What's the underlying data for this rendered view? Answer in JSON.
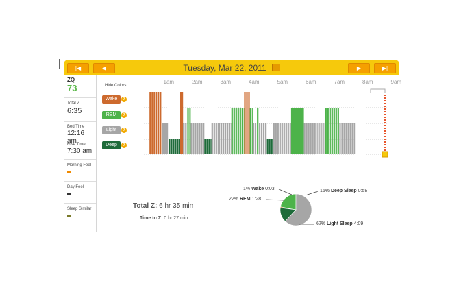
{
  "header": {
    "date_title": "Tuesday, Mar 22, 2011",
    "nav": {
      "first": "|◀",
      "prev": "◀",
      "next": "▶",
      "last": "▶|"
    }
  },
  "sidebar": {
    "zq_label": "ZQ",
    "zq_value": "73",
    "total_z_label": "Total Z",
    "total_z_value": "6:35",
    "bed_time_label": "Bed Time",
    "bed_time_value": "12:16 am",
    "rise_time_label": "Rise Time",
    "rise_time_value": "7:30 am",
    "morning_feel_label": "Morning Feel",
    "day_feel_label": "Day Feel",
    "sleep_similar_label": "Sleep Similar"
  },
  "hypnogram": {
    "hide_colors_label": "Hide Colors",
    "time_ticks": [
      "1am",
      "2am",
      "3am",
      "4am",
      "5am",
      "6am",
      "7am",
      "8am",
      "9am"
    ],
    "stages": [
      {
        "key": "wake",
        "label": "Wake",
        "color": "#cd6a2e"
      },
      {
        "key": "rem",
        "label": "REM",
        "color": "#4db34a"
      },
      {
        "key": "light",
        "label": "Light",
        "color": "#a6a6a6"
      },
      {
        "key": "deep",
        "label": "Deep",
        "color": "#1e6b3a"
      }
    ],
    "help_glyph": "?",
    "start_hour": 0.27,
    "end_hour": 7.5,
    "segments": [
      {
        "stage": "wake",
        "start": 0.27,
        "end": 0.72
      },
      {
        "stage": "light",
        "start": 0.72,
        "end": 0.95
      },
      {
        "stage": "deep",
        "start": 0.95,
        "end": 1.35
      },
      {
        "stage": "wake",
        "start": 1.35,
        "end": 1.45
      },
      {
        "stage": "light",
        "start": 1.45,
        "end": 1.6
      },
      {
        "stage": "rem",
        "start": 1.6,
        "end": 1.72
      },
      {
        "stage": "light",
        "start": 1.72,
        "end": 2.2
      },
      {
        "stage": "deep",
        "start": 2.2,
        "end": 2.45
      },
      {
        "stage": "light",
        "start": 2.45,
        "end": 2.7
      },
      {
        "stage": "light",
        "start": 2.7,
        "end": 3.15
      },
      {
        "stage": "rem",
        "start": 3.15,
        "end": 3.6
      },
      {
        "stage": "wake",
        "start": 3.6,
        "end": 3.8
      },
      {
        "stage": "rem",
        "start": 3.8,
        "end": 3.9
      },
      {
        "stage": "light",
        "start": 3.9,
        "end": 4.05
      },
      {
        "stage": "rem",
        "start": 4.05,
        "end": 4.12
      },
      {
        "stage": "light",
        "start": 4.12,
        "end": 4.4
      },
      {
        "stage": "deep",
        "start": 4.4,
        "end": 4.62
      },
      {
        "stage": "light",
        "start": 4.62,
        "end": 5.25
      },
      {
        "stage": "rem",
        "start": 5.25,
        "end": 5.7
      },
      {
        "stage": "light",
        "start": 5.7,
        "end": 6.45
      },
      {
        "stage": "rem",
        "start": 6.45,
        "end": 6.95
      },
      {
        "stage": "light",
        "start": 6.95,
        "end": 7.5
      }
    ]
  },
  "summary": {
    "total_z_label": "Total Z:",
    "total_z_value": "6 hr 35 min",
    "time_to_z_label": "Time to Z:",
    "time_to_z_value": "0 hr 27 min"
  },
  "chart_data": {
    "type": "pie",
    "title": "",
    "slices": [
      {
        "label": "Wake",
        "percent": "1%",
        "percent_value": 1,
        "duration": "0:03",
        "color": "#cd6a2e"
      },
      {
        "label": "REM",
        "percent": "22%",
        "percent_value": 22,
        "duration": "1:28",
        "color": "#4db34a"
      },
      {
        "label": "Deep Sleep",
        "percent": "15%",
        "percent_value": 15,
        "duration": "0:58",
        "color": "#1e6b3a"
      },
      {
        "label": "Light Sleep",
        "percent": "62%",
        "percent_value": 62,
        "duration": "4:09",
        "color": "#a6a6a6"
      }
    ]
  }
}
